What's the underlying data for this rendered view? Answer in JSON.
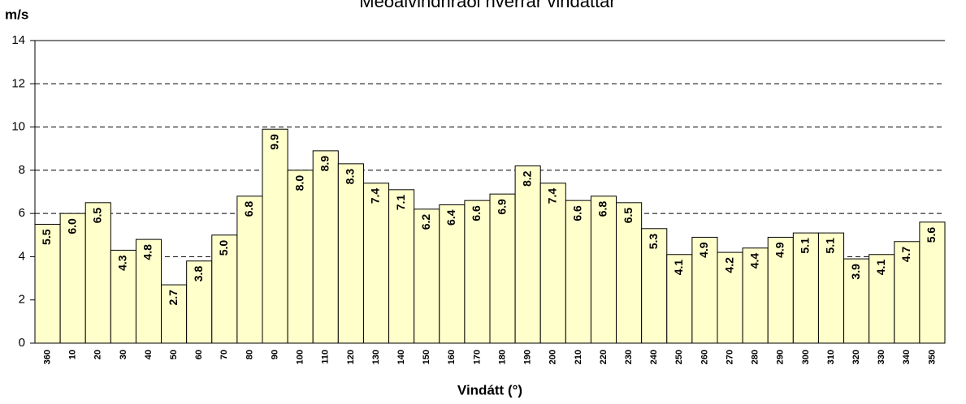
{
  "chart_data": {
    "type": "bar",
    "title": "Meðalvindhraði hverrar vindáttar",
    "y_label": "m/s",
    "x_label": "Vindátt (°)",
    "categories": [
      "360",
      "10",
      "20",
      "30",
      "40",
      "50",
      "60",
      "70",
      "80",
      "90",
      "100",
      "110",
      "120",
      "130",
      "140",
      "150",
      "160",
      "170",
      "180",
      "190",
      "200",
      "210",
      "220",
      "230",
      "240",
      "250",
      "260",
      "270",
      "280",
      "290",
      "300",
      "310",
      "320",
      "330",
      "340",
      "350"
    ],
    "values": [
      5.5,
      6.0,
      6.5,
      4.3,
      4.8,
      2.7,
      3.8,
      5.0,
      6.8,
      9.9,
      8.0,
      8.9,
      8.3,
      7.4,
      7.1,
      6.2,
      6.4,
      6.6,
      6.9,
      8.2,
      7.4,
      6.6,
      6.8,
      6.5,
      5.3,
      4.1,
      4.9,
      4.2,
      4.4,
      4.9,
      5.1,
      5.1,
      3.9,
      4.1,
      4.7,
      5.6
    ],
    "value_labels": [
      "5.5",
      "6.0",
      "6.5",
      "4.3",
      "4.8",
      "2.7",
      "3.8",
      "5.0",
      "6.8",
      "9.9",
      "8.0",
      "8.9",
      "8.3",
      "7.4",
      "7.1",
      "6.2",
      "6.4",
      "6.6",
      "6.9",
      "8.2",
      "7.4",
      "6.6",
      "6.8",
      "6.5",
      "5.3",
      "4.1",
      "4.9",
      "4.2",
      "4.4",
      "4.9",
      "5.1",
      "5.1",
      "3.9",
      "4.1",
      "4.7",
      "5.6"
    ],
    "color": "#ffffcc",
    "ylim": [
      0,
      14
    ],
    "yticks": [
      0,
      2,
      4,
      6,
      8,
      10,
      12,
      14
    ],
    "grid": true
  }
}
